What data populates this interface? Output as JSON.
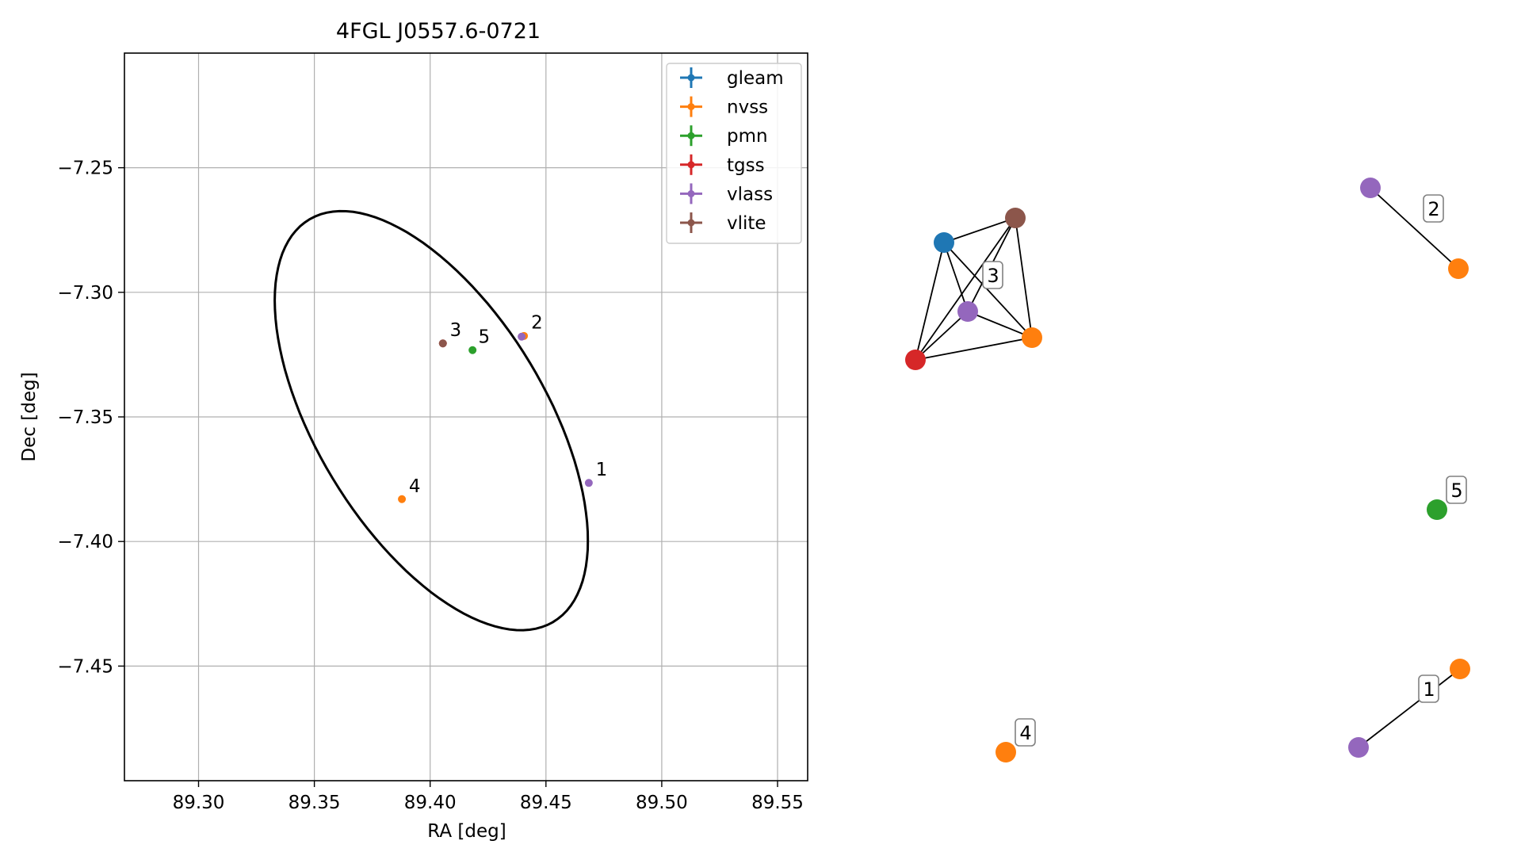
{
  "chart_data": [
    {
      "type": "scatter",
      "title": "4FGL J0557.6-0721",
      "xlabel": "RA [deg]",
      "ylabel": "Dec [deg]",
      "xlim": [
        89.268,
        89.563
      ],
      "ylim": [
        -7.496,
        -7.204
      ],
      "x_ticks": [
        89.3,
        89.35,
        89.4,
        89.45,
        89.5,
        89.55
      ],
      "x_tick_labels": [
        "89.30",
        "89.35",
        "89.40",
        "89.45",
        "89.50",
        "89.55"
      ],
      "y_ticks": [
        -7.25,
        -7.3,
        -7.35,
        -7.4,
        -7.45
      ],
      "y_tick_labels": [
        "−7.25",
        "−7.30",
        "−7.35",
        "−7.40",
        "−7.45"
      ],
      "grid": true,
      "legend_position": "top-right",
      "legend": [
        {
          "name": "gleam",
          "color": "#1f77b4"
        },
        {
          "name": "nvss",
          "color": "#ff7f0e"
        },
        {
          "name": "pmn",
          "color": "#2ca02c"
        },
        {
          "name": "tgss",
          "color": "#d62728"
        },
        {
          "name": "vlass",
          "color": "#9467bd"
        },
        {
          "name": "vlite",
          "color": "#8c564b"
        }
      ],
      "ellipse": {
        "center_ra": 89.4005,
        "center_dec": -7.3515,
        "semi_major_deg": 0.0965,
        "semi_minor_deg": 0.0483,
        "pa_deg_from_ra": -55.5
      },
      "points": [
        {
          "survey": "vlass",
          "ra": 89.4685,
          "dec": -7.3765,
          "color": "#9467bd"
        },
        {
          "survey": "nvss",
          "ra": 89.4405,
          "dec": -7.3175,
          "color": "#ff7f0e"
        },
        {
          "survey": "vlass",
          "ra": 89.4395,
          "dec": -7.3178,
          "color": "#9467bd"
        },
        {
          "survey": "tgss",
          "ra": 89.4055,
          "dec": -7.3205,
          "color": "#d62728"
        },
        {
          "survey": "vlite",
          "ra": 89.4055,
          "dec": -7.3205,
          "color": "#8c564b"
        },
        {
          "survey": "pmn",
          "ra": 89.4183,
          "dec": -7.3232,
          "color": "#2ca02c"
        },
        {
          "survey": "nvss",
          "ra": 89.3878,
          "dec": -7.383,
          "color": "#ff7f0e"
        }
      ],
      "point_labels": [
        {
          "text": "1",
          "ra": 89.4715,
          "dec": -7.3736
        },
        {
          "text": "2",
          "ra": 89.4436,
          "dec": -7.3145
        },
        {
          "text": "3",
          "ra": 89.4085,
          "dec": -7.3175
        },
        {
          "text": "5",
          "ra": 89.4208,
          "dec": -7.3203
        },
        {
          "text": "4",
          "ra": 89.3908,
          "dec": -7.3802
        }
      ]
    },
    {
      "type": "network",
      "groups": [
        {
          "label": "3",
          "nodes": [
            "gleam",
            "vlite",
            "vlass",
            "nvss",
            "tgss"
          ],
          "colors": [
            "#1f77b4",
            "#8c564b",
            "#9467bd",
            "#ff7f0e",
            "#d62728"
          ]
        },
        {
          "label": "2",
          "nodes": [
            "vlass",
            "nvss"
          ],
          "colors": [
            "#9467bd",
            "#ff7f0e"
          ]
        },
        {
          "label": "5",
          "nodes": [
            "pmn"
          ],
          "colors": [
            "#2ca02c"
          ]
        },
        {
          "label": "4",
          "nodes": [
            "nvss"
          ],
          "colors": [
            "#ff7f0e"
          ]
        },
        {
          "label": "1",
          "nodes": [
            "vlass",
            "nvss"
          ],
          "colors": [
            "#9467bd",
            "#ff7f0e"
          ]
        }
      ]
    }
  ]
}
